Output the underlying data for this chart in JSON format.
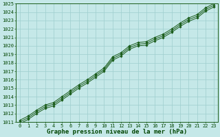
{
  "title": "Graphe pression niveau de la mer (hPa)",
  "x": [
    0,
    1,
    2,
    3,
    4,
    5,
    6,
    7,
    8,
    9,
    10,
    11,
    12,
    13,
    14,
    15,
    16,
    17,
    18,
    19,
    20,
    21,
    22,
    23
  ],
  "y_main": [
    1011.0,
    1011.5,
    1012.2,
    1012.8,
    1013.1,
    1013.8,
    1014.5,
    1015.2,
    1015.8,
    1016.5,
    1017.2,
    1018.5,
    1019.0,
    1019.8,
    1020.2,
    1020.3,
    1020.8,
    1021.2,
    1021.8,
    1022.5,
    1023.1,
    1023.5,
    1024.3,
    1024.8
  ],
  "y_upper": [
    1011.2,
    1011.7,
    1012.4,
    1013.0,
    1013.3,
    1014.0,
    1014.7,
    1015.4,
    1016.0,
    1016.7,
    1017.4,
    1018.7,
    1019.2,
    1020.0,
    1020.4,
    1020.5,
    1021.0,
    1021.4,
    1022.0,
    1022.7,
    1023.3,
    1023.7,
    1024.5,
    1025.0
  ],
  "y_lower": [
    1010.8,
    1011.3,
    1012.0,
    1012.6,
    1012.9,
    1013.6,
    1014.3,
    1015.0,
    1015.6,
    1016.3,
    1017.0,
    1018.3,
    1018.8,
    1019.6,
    1020.0,
    1020.1,
    1020.6,
    1021.0,
    1021.6,
    1022.3,
    1022.9,
    1023.3,
    1024.1,
    1024.6
  ],
  "xlim": [
    0,
    23
  ],
  "ylim": [
    1011,
    1025
  ],
  "yticks": [
    1011,
    1012,
    1013,
    1014,
    1015,
    1016,
    1017,
    1018,
    1019,
    1020,
    1021,
    1022,
    1023,
    1024,
    1025
  ],
  "xticks": [
    0,
    1,
    2,
    3,
    4,
    5,
    6,
    7,
    8,
    9,
    10,
    11,
    12,
    13,
    14,
    15,
    16,
    17,
    18,
    19,
    20,
    21,
    22,
    23
  ],
  "bg_color": "#c5e8e8",
  "grid_color": "#9ecece",
  "line_color": "#1a5c1a",
  "marker": "D",
  "markersize": 1.8,
  "linewidth": 0.7,
  "title_fontsize": 6.5,
  "tick_fontsize": 5.0,
  "title_color": "#004400"
}
